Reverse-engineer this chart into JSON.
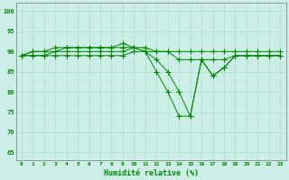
{
  "xlabel": "Humidité relative (%)",
  "xlim": [
    -0.5,
    23.5
  ],
  "ylim": [
    63,
    102
  ],
  "yticks": [
    65,
    70,
    75,
    80,
    85,
    90,
    95,
    100
  ],
  "xticks": [
    0,
    1,
    2,
    3,
    4,
    5,
    6,
    7,
    8,
    9,
    10,
    11,
    12,
    13,
    14,
    15,
    16,
    17,
    18,
    19,
    20,
    21,
    22,
    23
  ],
  "background_color": "#cceee6",
  "grid_color": "#aaddcc",
  "line_color": "#008800",
  "series": [
    [
      89,
      90,
      90,
      91,
      91,
      91,
      91,
      91,
      91,
      92,
      91,
      90,
      85,
      80,
      74,
      74,
      88,
      84,
      86,
      89,
      89,
      89,
      89,
      89
    ],
    [
      89,
      90,
      90,
      90,
      91,
      91,
      91,
      91,
      91,
      91,
      91,
      90,
      88,
      85,
      80,
      74,
      88,
      84,
      86,
      89,
      89,
      89,
      89,
      89
    ],
    [
      89,
      89,
      89,
      90,
      90,
      90,
      90,
      90,
      90,
      90,
      91,
      91,
      90,
      90,
      88,
      88,
      88,
      88,
      88,
      89,
      89,
      89,
      89,
      89
    ],
    [
      89,
      89,
      89,
      89,
      89,
      89,
      89,
      89,
      89,
      89,
      90,
      90,
      90,
      90,
      90,
      90,
      90,
      90,
      90,
      90,
      90,
      90,
      90,
      90
    ]
  ],
  "marker_series": [
    0,
    1,
    2,
    3
  ]
}
